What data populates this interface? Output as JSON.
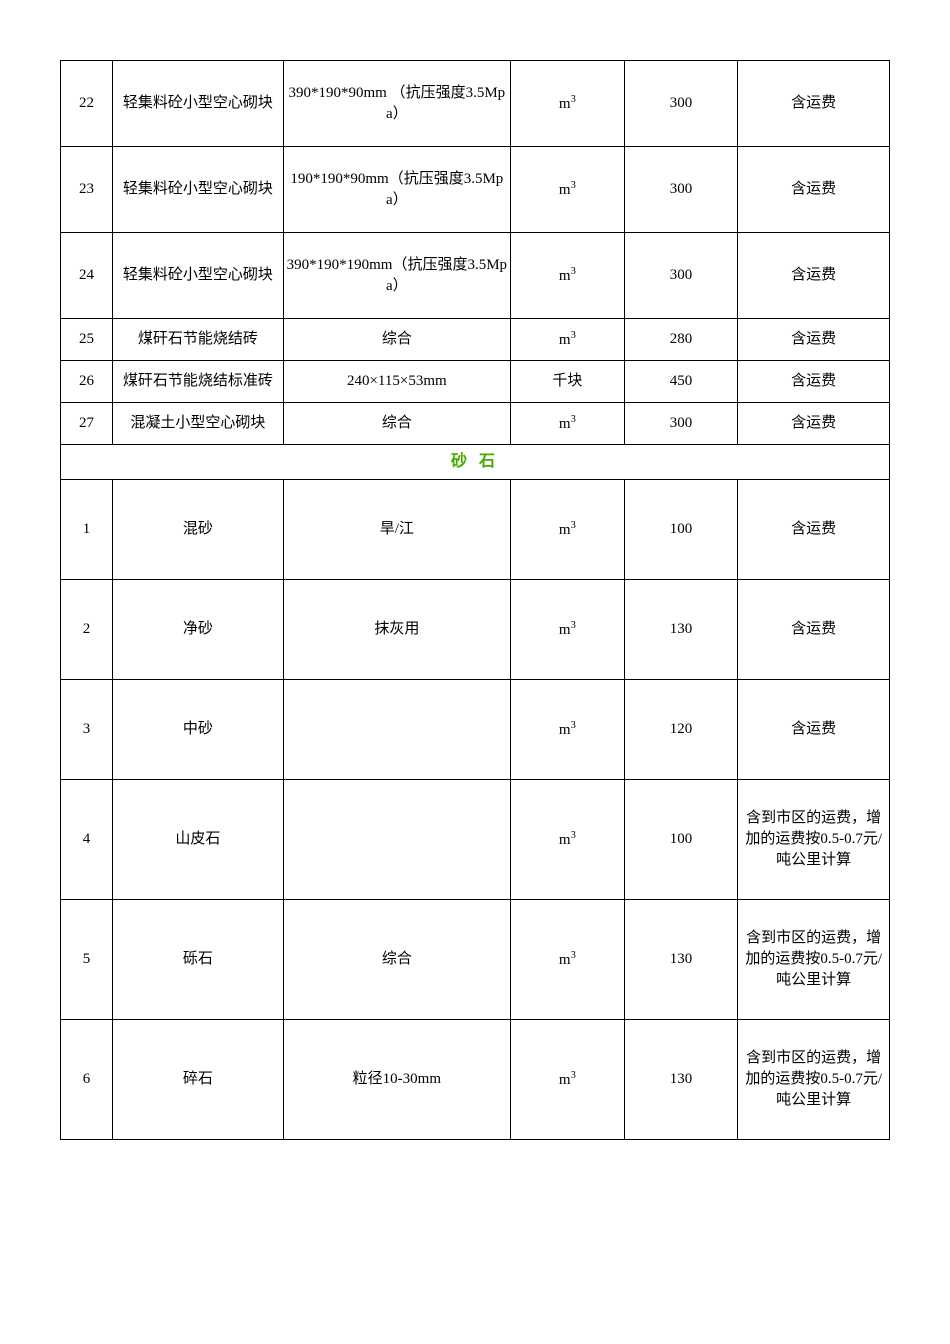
{
  "section_header": {
    "text": "砂 石",
    "color": "#44aa00"
  },
  "rows_top": [
    {
      "idx": "22",
      "name": "轻集料砼小型空心砌块",
      "spec": "390*190*90mm （抗压强度3.5Mpa）",
      "unit": "m³",
      "price": "300",
      "note": "含运费",
      "h": "h-tall"
    },
    {
      "idx": "23",
      "name": "轻集料砼小型空心砌块",
      "spec": "190*190*90mm（抗压强度3.5Mpa）",
      "unit": "m³",
      "price": "300",
      "note": "含运费",
      "h": "h-tall"
    },
    {
      "idx": "24",
      "name": "轻集料砼小型空心砌块",
      "spec": "390*190*190mm（抗压强度3.5Mpa）",
      "unit": "m³",
      "price": "300",
      "note": "含运费",
      "h": "h-tall"
    },
    {
      "idx": "25",
      "name": "煤矸石节能烧结砖",
      "spec": "综合",
      "unit": "m³",
      "price": "280",
      "note": "含运费",
      "h": "h-mid"
    },
    {
      "idx": "26",
      "name": "煤矸石节能烧结标准砖",
      "spec": "240×115×53mm",
      "unit": "千块",
      "price": "450",
      "note": "含运费",
      "h": "h-mid"
    },
    {
      "idx": "27",
      "name": "混凝土小型空心砌块",
      "spec": "综合",
      "unit": "m³",
      "price": "300",
      "note": "含运费",
      "h": "h-mid"
    }
  ],
  "rows_sand": [
    {
      "idx": "1",
      "name": "混砂",
      "spec": "旱/江",
      "unit": "m³",
      "price": "100",
      "note": "含运费",
      "h": "h-sand"
    },
    {
      "idx": "2",
      "name": "净砂",
      "spec": "抹灰用",
      "unit": "m³",
      "price": "130",
      "note": "含运费",
      "h": "h-sand"
    },
    {
      "idx": "3",
      "name": "中砂",
      "spec": "",
      "unit": "m³",
      "price": "120",
      "note": "含运费",
      "h": "h-sand"
    },
    {
      "idx": "4",
      "name": "山皮石",
      "spec": "",
      "unit": "m³",
      "price": "100",
      "note": "含到市区的运费，增加的运费按0.5-0.7元/吨公里计算",
      "h": "h-rock"
    },
    {
      "idx": "5",
      "name": "砾石",
      "spec": "综合",
      "unit": "m³",
      "price": "130",
      "note": "含到市区的运费，增加的运费按0.5-0.7元/吨公里计算",
      "h": "h-rock"
    },
    {
      "idx": "6",
      "name": "碎石",
      "spec": "粒径10-30mm",
      "unit": "m³",
      "price": "130",
      "note": "含到市区的运费，增加的运费按0.5-0.7元/吨公里计算",
      "h": "h-rock"
    }
  ]
}
